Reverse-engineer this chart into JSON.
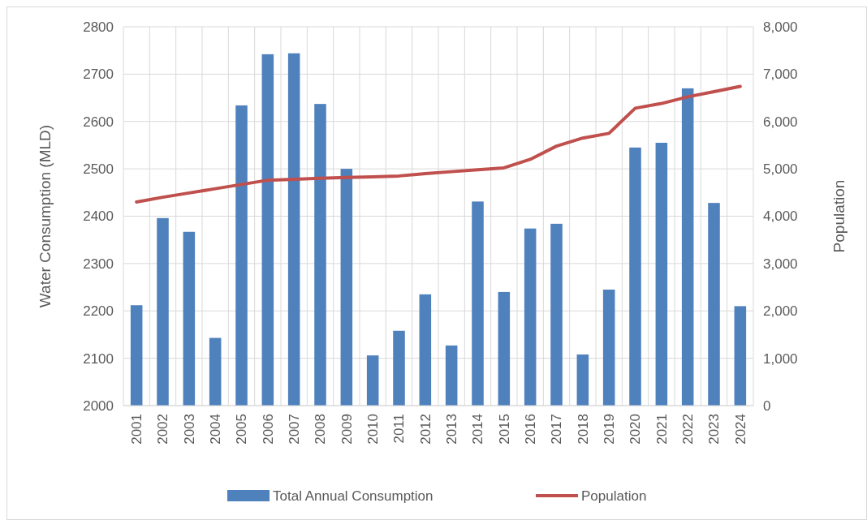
{
  "chart_data": {
    "type": "bar",
    "categories": [
      "2001",
      "2002",
      "2003",
      "2004",
      "2005",
      "2006",
      "2007",
      "2008",
      "2009",
      "2010",
      "2011",
      "2012",
      "2013",
      "2014",
      "2015",
      "2016",
      "2017",
      "2018",
      "2019",
      "2020",
      "2021",
      "2022",
      "2023",
      "2024"
    ],
    "series": [
      {
        "name": "Total Annual Consumption",
        "color": "#4f81bd",
        "values": [
          2212,
          2396,
          2367,
          2143,
          2634,
          2742,
          2744,
          2637,
          2500,
          2106,
          2158,
          2235,
          2127,
          2431,
          2240,
          2374,
          2384,
          2108,
          2245,
          2545,
          2555,
          2670,
          2428,
          2210
        ]
      },
      {
        "name": "Population",
        "type": "line",
        "axis": "y2",
        "color": "#c0504d",
        "values": [
          4300,
          4400,
          4490,
          4580,
          4670,
          4760,
          4780,
          4800,
          4820,
          4830,
          4850,
          4900,
          4940,
          4980,
          5020,
          5200,
          5480,
          5650,
          5750,
          6280,
          6380,
          6520,
          6630,
          6740
        ]
      }
    ],
    "ylabel": "Water Consumption (MLD)",
    "y2label": "Population",
    "ylim": [
      2000,
      2800
    ],
    "yticks": [
      2000,
      2100,
      2200,
      2300,
      2400,
      2500,
      2600,
      2700,
      2800
    ],
    "y2lim": [
      0,
      8000
    ],
    "y2ticks": [
      {
        "value": 0,
        "label": "0"
      },
      {
        "value": 1000,
        "label": "1,000"
      },
      {
        "value": 2000,
        "label": "2,000"
      },
      {
        "value": 3000,
        "label": "3,000"
      },
      {
        "value": 4000,
        "label": "4,000"
      },
      {
        "value": 5000,
        "label": "5,000"
      },
      {
        "value": 6000,
        "label": "6,000"
      },
      {
        "value": 7000,
        "label": "7,000"
      },
      {
        "value": 8000,
        "label": "8,000"
      }
    ],
    "grid": true,
    "legend": "bottom"
  }
}
